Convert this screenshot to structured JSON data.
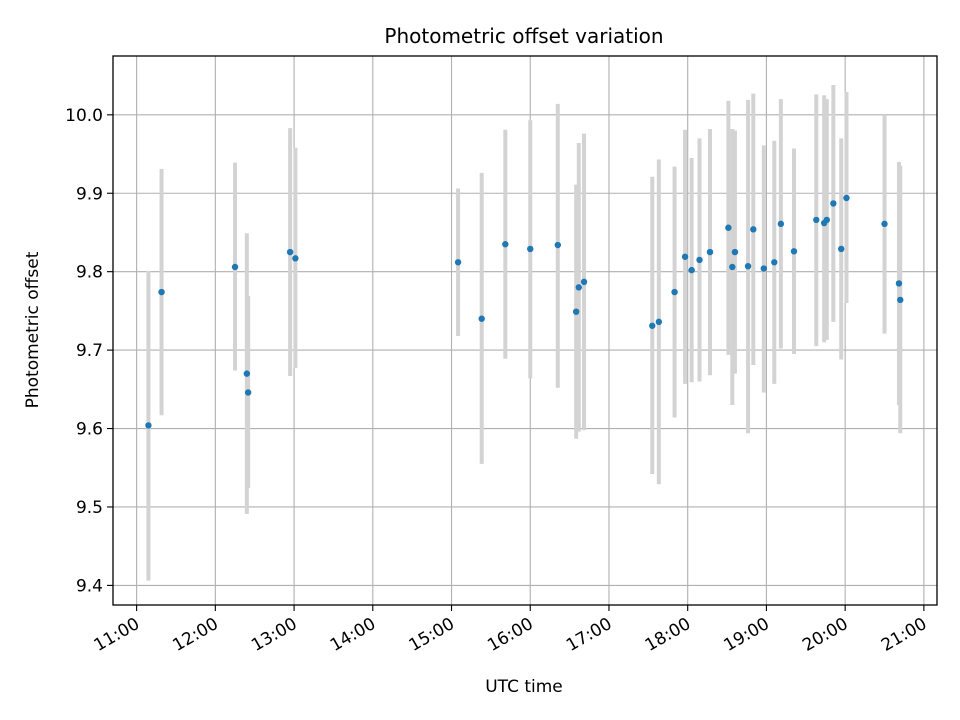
{
  "chart_data": {
    "type": "scatter",
    "title": "Photometric offset variation",
    "xlabel": "UTC time",
    "ylabel": "Photometric offset",
    "grid": true,
    "xlim": [
      "10:42",
      "21:10"
    ],
    "ylim": [
      9.375,
      10.075
    ],
    "x_ticks": [
      "11:00",
      "12:00",
      "13:00",
      "14:00",
      "15:00",
      "16:00",
      "17:00",
      "18:00",
      "19:00",
      "20:00",
      "21:00"
    ],
    "y_ticks": [
      9.4,
      9.5,
      9.6,
      9.7,
      9.8,
      9.9,
      10.0
    ],
    "y_tick_labels": [
      "9.4",
      "9.5",
      "9.6",
      "9.7",
      "9.8",
      "9.9",
      "10.0"
    ],
    "point_color": "#1f77b4",
    "error_color": "#d3d3d3",
    "points": [
      {
        "x": "11:09",
        "y": 9.604,
        "low": 9.406,
        "high": 9.801
      },
      {
        "x": "11:19",
        "y": 9.774,
        "low": 9.617,
        "high": 9.931
      },
      {
        "x": "12:15",
        "y": 9.806,
        "low": 9.674,
        "high": 9.939
      },
      {
        "x": "12:24",
        "y": 9.67,
        "low": 9.491,
        "high": 9.849
      },
      {
        "x": "12:25",
        "y": 9.646,
        "low": 9.524,
        "high": 9.769
      },
      {
        "x": "12:57",
        "y": 9.825,
        "low": 9.667,
        "high": 9.983
      },
      {
        "x": "13:01",
        "y": 9.817,
        "low": 9.677,
        "high": 9.958
      },
      {
        "x": "15:05",
        "y": 9.812,
        "low": 9.718,
        "high": 9.906
      },
      {
        "x": "15:23",
        "y": 9.74,
        "low": 9.555,
        "high": 9.926
      },
      {
        "x": "15:41",
        "y": 9.835,
        "low": 9.689,
        "high": 9.981
      },
      {
        "x": "16:00",
        "y": 9.829,
        "low": 9.664,
        "high": 9.993
      },
      {
        "x": "16:21",
        "y": 9.834,
        "low": 9.652,
        "high": 10.014
      },
      {
        "x": "16:35",
        "y": 9.749,
        "low": 9.587,
        "high": 9.911
      },
      {
        "x": "16:37",
        "y": 9.78,
        "low": 9.596,
        "high": 9.964
      },
      {
        "x": "16:41",
        "y": 9.787,
        "low": 9.598,
        "high": 9.976
      },
      {
        "x": "17:33",
        "y": 9.731,
        "low": 9.542,
        "high": 9.921
      },
      {
        "x": "17:38",
        "y": 9.736,
        "low": 9.529,
        "high": 9.943
      },
      {
        "x": "17:50",
        "y": 9.774,
        "low": 9.614,
        "high": 9.934
      },
      {
        "x": "17:58",
        "y": 9.819,
        "low": 9.657,
        "high": 9.981
      },
      {
        "x": "18:03",
        "y": 9.802,
        "low": 9.659,
        "high": 9.945
      },
      {
        "x": "18:09",
        "y": 9.815,
        "low": 9.66,
        "high": 9.97
      },
      {
        "x": "18:17",
        "y": 9.825,
        "low": 9.668,
        "high": 9.982
      },
      {
        "x": "18:31",
        "y": 9.856,
        "low": 9.694,
        "high": 10.018
      },
      {
        "x": "18:34",
        "y": 9.806,
        "low": 9.63,
        "high": 9.982
      },
      {
        "x": "18:36",
        "y": 9.825,
        "low": 9.67,
        "high": 9.98
      },
      {
        "x": "18:46",
        "y": 9.807,
        "low": 9.594,
        "high": 10.019
      },
      {
        "x": "18:50",
        "y": 9.854,
        "low": 9.681,
        "high": 10.027
      },
      {
        "x": "18:58",
        "y": 9.804,
        "low": 9.646,
        "high": 9.961
      },
      {
        "x": "19:06",
        "y": 9.812,
        "low": 9.657,
        "high": 9.967
      },
      {
        "x": "19:11",
        "y": 9.861,
        "low": 9.702,
        "high": 10.02
      },
      {
        "x": "19:21",
        "y": 9.826,
        "low": 9.695,
        "high": 9.957
      },
      {
        "x": "19:38",
        "y": 9.866,
        "low": 9.705,
        "high": 10.026
      },
      {
        "x": "19:44",
        "y": 9.862,
        "low": 9.71,
        "high": 10.025
      },
      {
        "x": "19:46",
        "y": 9.866,
        "low": 9.713,
        "high": 10.02
      },
      {
        "x": "19:51",
        "y": 9.887,
        "low": 9.736,
        "high": 10.038
      },
      {
        "x": "19:57",
        "y": 9.829,
        "low": 9.688,
        "high": 9.97
      },
      {
        "x": "20:01",
        "y": 9.894,
        "low": 9.76,
        "high": 10.029
      },
      {
        "x": "20:30",
        "y": 9.861,
        "low": 9.721,
        "high": 10.0
      },
      {
        "x": "20:41",
        "y": 9.785,
        "low": 9.63,
        "high": 9.94
      },
      {
        "x": "20:42",
        "y": 9.764,
        "low": 9.594,
        "high": 9.935
      }
    ]
  }
}
